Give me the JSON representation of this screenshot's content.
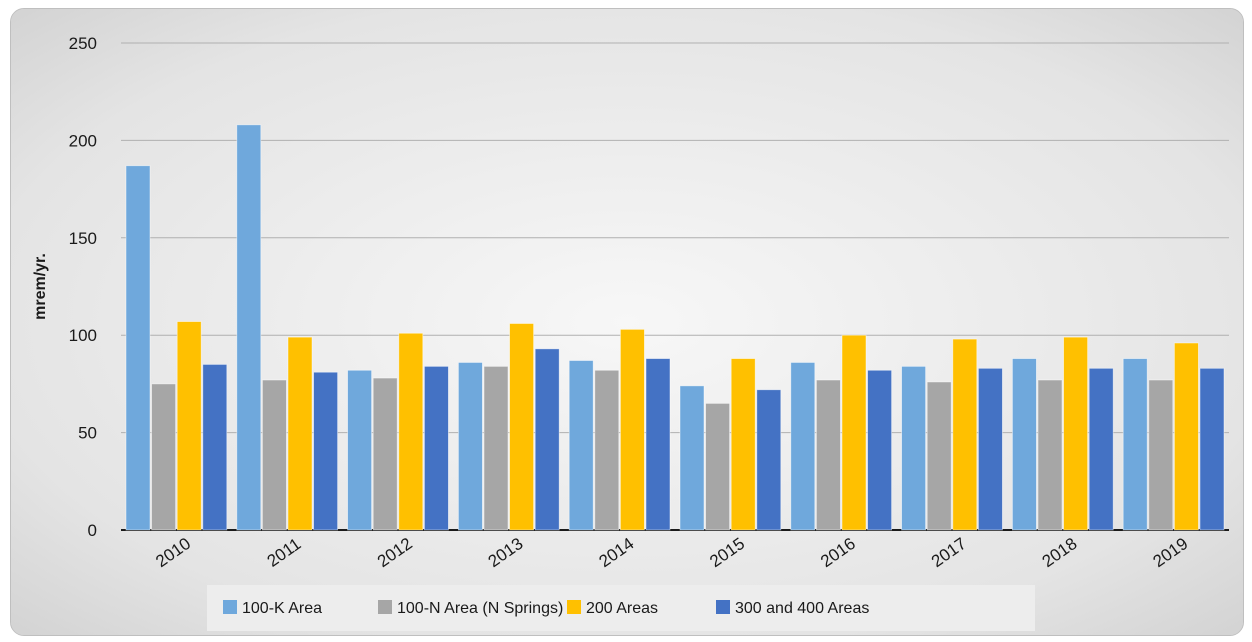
{
  "chart_data": {
    "type": "bar",
    "title": "",
    "xlabel": "",
    "ylabel": "mrem/yr.",
    "ylim": [
      0,
      250
    ],
    "yticks": [
      0,
      50,
      100,
      150,
      200,
      250
    ],
    "grid": true,
    "legend_position": "bottom",
    "categories": [
      "2010",
      "2011",
      "2012",
      "2013",
      "2014",
      "2015",
      "2016",
      "2017",
      "2018",
      "2019"
    ],
    "series": [
      {
        "name": "100-K Area",
        "color": "#6fa8dc",
        "values": [
          187,
          208,
          82,
          86,
          87,
          74,
          86,
          84,
          88,
          88
        ]
      },
      {
        "name": "100-N Area (N Springs)",
        "color": "#a6a6a6",
        "values": [
          75,
          77,
          78,
          84,
          82,
          65,
          77,
          76,
          77,
          77
        ]
      },
      {
        "name": "200 Areas",
        "color": "#ffc000",
        "values": [
          107,
          99,
          101,
          106,
          103,
          88,
          100,
          98,
          99,
          96
        ]
      },
      {
        "name": "300 and 400 Areas",
        "color": "#4472c4",
        "values": [
          85,
          81,
          84,
          93,
          88,
          72,
          82,
          83,
          83,
          83
        ]
      }
    ]
  }
}
